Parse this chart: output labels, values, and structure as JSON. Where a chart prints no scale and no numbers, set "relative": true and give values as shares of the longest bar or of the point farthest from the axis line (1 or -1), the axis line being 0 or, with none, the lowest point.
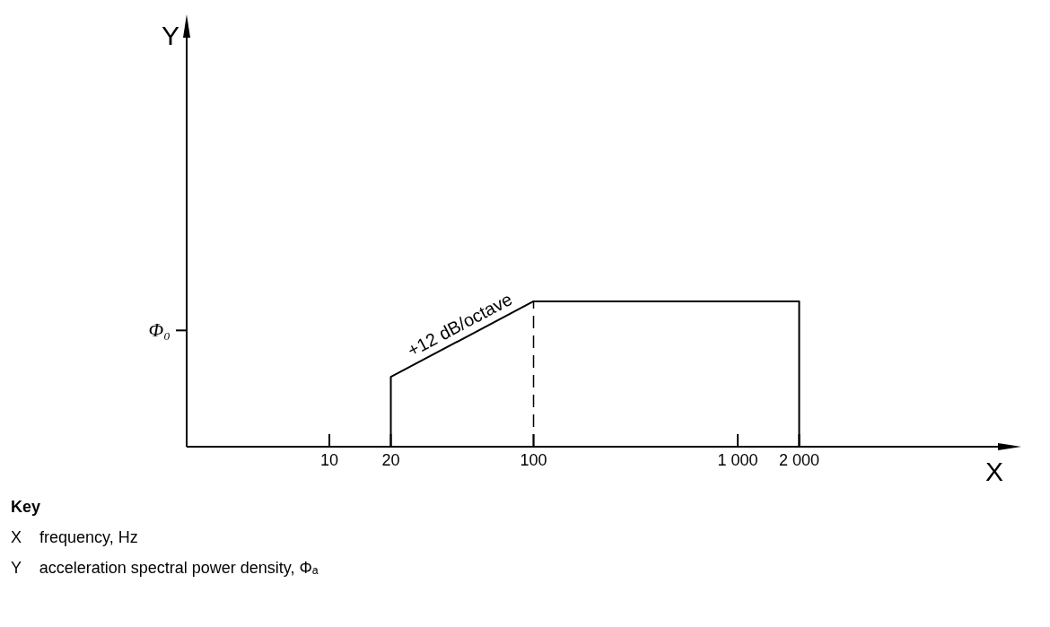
{
  "chart_data": {
    "type": "line",
    "relative": true,
    "log": "x",
    "grid": false,
    "legend": false,
    "marker": "none",
    "line_style": "solid",
    "xlim": [
      2,
      20000
    ],
    "xticks": [
      10,
      20,
      100,
      {
        "value": 1000,
        "label": "1 000"
      },
      {
        "value": 2000,
        "label": "2 000"
      }
    ],
    "series": [
      {
        "color": "#000000",
        "x": [
          20,
          20,
          100,
          2000,
          2000
        ],
        "values": [
          0,
          0.48,
          1,
          1,
          0
        ]
      }
    ],
    "ref_lines": [
      {
        "axis": "x",
        "value": 100,
        "line_style": "dashed",
        "color": "#000000"
      }
    ],
    "annotations": [
      {
        "text": "+12 dB/octave",
        "x": 45,
        "y": 0.74
      },
      "Φ₀",
      "Y",
      "X",
      "Key",
      "X    frequency, Hz",
      "Y    acceleration spectral power density, Φₐ"
    ]
  }
}
